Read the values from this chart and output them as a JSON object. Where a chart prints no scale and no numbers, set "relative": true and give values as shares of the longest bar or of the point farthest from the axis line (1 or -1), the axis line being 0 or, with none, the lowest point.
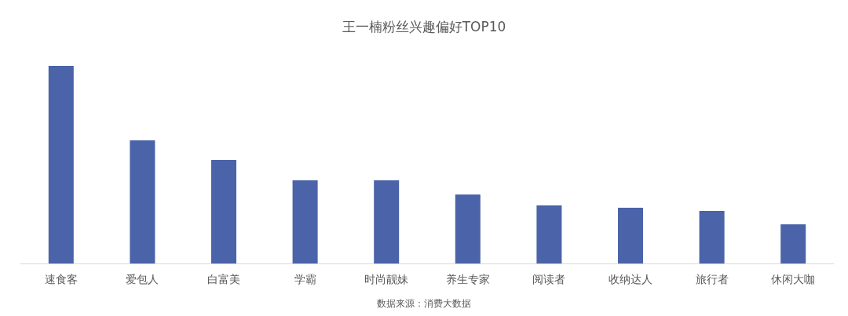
{
  "chart_data": {
    "type": "bar",
    "title": "王一楠粉丝兴趣偏好TOP10",
    "relative": true,
    "color": "#4a63a9",
    "categories": [
      "速食客",
      "爱包人",
      "白富美",
      "学霸",
      "时尚靓妹",
      "养生专家",
      "阅读者",
      "收纳达人",
      "旅行者",
      "休闲大咖"
    ],
    "values": [
      1,
      0.623,
      0.524,
      0.421,
      0.421,
      0.349,
      0.294,
      0.282,
      0.266,
      0.198
    ],
    "grid": false,
    "annotations": [
      "数据来源：消费大数据"
    ]
  }
}
